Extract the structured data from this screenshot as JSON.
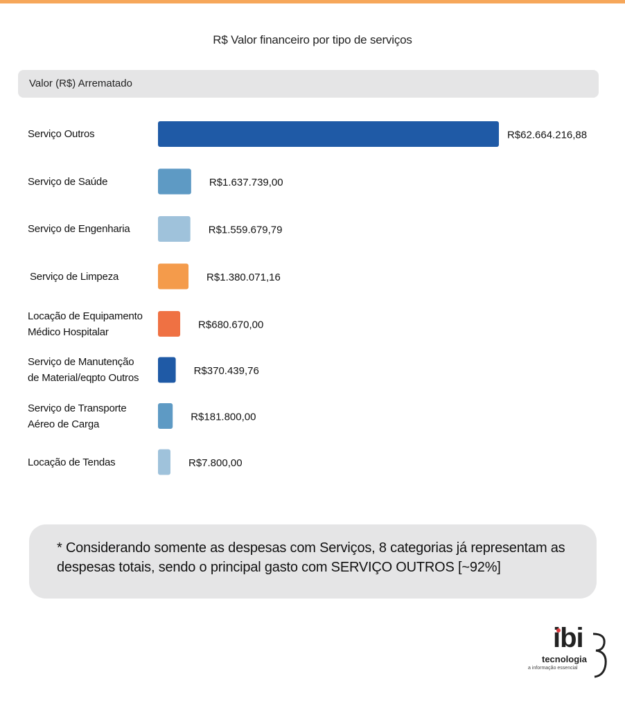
{
  "chart_data": {
    "type": "bar",
    "orientation": "horizontal",
    "title": "R$ Valor financeiro por tipo de serviços",
    "series": [
      {
        "name": "Valor (R$) Arrematado",
        "values": [
          62664216.88,
          1637739.0,
          1559679.79,
          1380071.16,
          680670.0,
          370439.76,
          181800.0,
          7800.0
        ]
      }
    ],
    "categories": [
      "Serviço Outros",
      "Serviço de Saúde",
      "Serviço de Engenharia",
      "Serviço de Limpeza",
      "Locação de Equipamento Médico Hospitalar",
      "Serviço de Manutenção de Material/eqpto Outros",
      "Serviço de Transporte Aéreo de Carga",
      "Locação de Tendas"
    ],
    "category_lines": [
      [
        "Serviço Outros"
      ],
      [
        "Serviço de Saúde"
      ],
      [
        "Serviço de Engenharia"
      ],
      [
        "Serviço de Limpeza"
      ],
      [
        "Locação de Equipamento",
        "Médico Hospitalar"
      ],
      [
        "Serviço de Manutenção",
        "de Material/eqpto Outros"
      ],
      [
        "Serviço de Transporte",
        "Aéreo de Carga"
      ],
      [
        "Locação de Tendas"
      ]
    ],
    "value_labels": [
      "R$62.664.216,88",
      "R$1.637.739,00",
      "R$1.559.679,79",
      "R$1.380.071,16",
      "R$680.670,00",
      "R$370.439,76",
      "R$181.800,00",
      "R$7.800,00"
    ],
    "bar_colors": [
      "#1f5aa6",
      "#5e9ac4",
      "#9fc2db",
      "#f49b4b",
      "#ef7143",
      "#1f5aa6",
      "#5e9ac4",
      "#9fc2db"
    ],
    "scale": "non-linear (display)",
    "grid": false,
    "xlabel": "",
    "ylabel": ""
  },
  "note": {
    "line1": "* Considerando somente as despesas com Serviços, 8 categorias já representam as",
    "line2": "despesas totais, sendo o principal gasto com SERVIÇO OUTROS [~92%]"
  },
  "logo": {
    "brand": "ibi",
    "name": "tecnologia",
    "tagline": "a informação essencial"
  },
  "colors": {
    "accent_top_bar": "#f6a75a",
    "panel_gray": "#e5e5e6"
  }
}
